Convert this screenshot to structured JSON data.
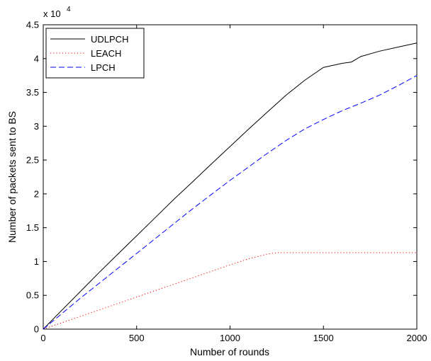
{
  "chart_data": {
    "type": "line",
    "title": "",
    "xlabel": "Number of rounds",
    "ylabel": "Number of packets sent to BS",
    "xlim": [
      0,
      2000
    ],
    "ylim": [
      0,
      45000
    ],
    "x_ticks": [
      0,
      500,
      1000,
      1500,
      2000
    ],
    "y_ticks": [
      0,
      5000,
      10000,
      15000,
      20000,
      25000,
      30000,
      35000,
      40000,
      45000
    ],
    "x_tick_labels": [
      "0",
      "500",
      "1000",
      "1500",
      "2000"
    ],
    "y_tick_labels": [
      "0",
      "0.5",
      "1",
      "1.5",
      "2",
      "2.5",
      "3",
      "3.5",
      "4",
      "4.5"
    ],
    "y_multiplier": {
      "base": "x 10",
      "exponent": "4"
    },
    "grid": false,
    "legend_position": "top-left",
    "series": [
      {
        "name": "UDLPCH",
        "color": "#000000",
        "dash": "solid",
        "x": [
          0,
          100,
          200,
          300,
          400,
          500,
          600,
          700,
          800,
          900,
          1000,
          1100,
          1200,
          1300,
          1400,
          1500,
          1600,
          1650,
          1700,
          1800,
          1900,
          2000
        ],
        "y": [
          0,
          2800,
          5600,
          8400,
          11100,
          13800,
          16500,
          19200,
          21800,
          24400,
          27000,
          29600,
          32100,
          34600,
          36800,
          38700,
          39300,
          39500,
          40300,
          41100,
          41700,
          42300
        ]
      },
      {
        "name": "LEACH",
        "color": "#ff0000",
        "dash": "dotted",
        "x": [
          0,
          100,
          200,
          300,
          400,
          500,
          600,
          700,
          800,
          900,
          1000,
          1100,
          1200,
          1250,
          1300,
          1500,
          1700,
          1900,
          2000
        ],
        "y": [
          0,
          950,
          1900,
          2850,
          3800,
          4750,
          5700,
          6650,
          7600,
          8550,
          9500,
          10400,
          11100,
          11300,
          11300,
          11300,
          11300,
          11300,
          11300
        ]
      },
      {
        "name": "LPCH",
        "color": "#0000ff",
        "dash": "dashed",
        "x": [
          0,
          100,
          200,
          300,
          400,
          500,
          600,
          700,
          800,
          900,
          1000,
          1100,
          1200,
          1300,
          1400,
          1500,
          1600,
          1700,
          1800,
          1900,
          2000
        ],
        "y": [
          0,
          2300,
          4600,
          6800,
          9000,
          11200,
          13400,
          15600,
          17800,
          19900,
          22000,
          24000,
          26000,
          27900,
          29600,
          31000,
          32300,
          33400,
          34600,
          36000,
          37500
        ]
      }
    ]
  }
}
